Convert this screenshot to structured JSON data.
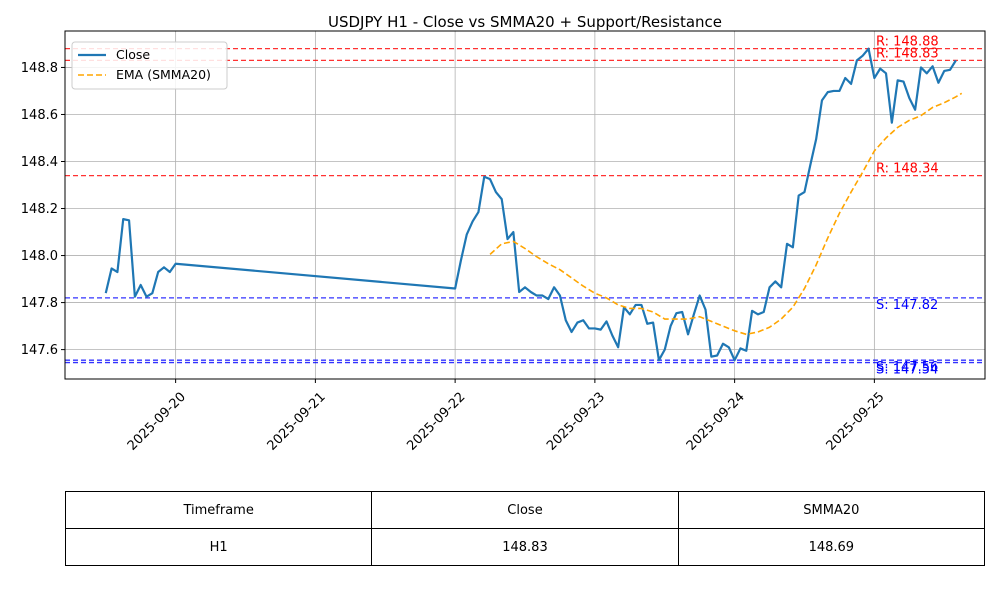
{
  "chart_data": {
    "type": "line",
    "title": "USDJPY H1 - Close vs SMMA20 + Support/Resistance",
    "xlabel": "",
    "ylabel": "",
    "x_ticks": [
      "2025-09-20",
      "2025-09-21",
      "2025-09-22",
      "2025-09-23",
      "2025-09-24",
      "2025-09-25"
    ],
    "y_ticks": [
      "147.6",
      "147.8",
      "148.0",
      "148.2",
      "148.4",
      "148.6",
      "148.8"
    ],
    "xlim": [
      "2025-09-19T05:00",
      "2025-09-25T19:00"
    ],
    "ylim": [
      147.475,
      148.955
    ],
    "grid": true,
    "legend_position": "upper-left",
    "legend": [
      "Close",
      "EMA (SMMA20)"
    ],
    "series": [
      {
        "name": "Close",
        "color": "#1f77b4",
        "points": [
          [
            "2025-09-19T12:00",
            147.84
          ],
          [
            "2025-09-19T13:00",
            147.945
          ],
          [
            "2025-09-19T14:00",
            147.93
          ],
          [
            "2025-09-19T15:00",
            148.155
          ],
          [
            "2025-09-19T16:00",
            148.15
          ],
          [
            "2025-09-19T17:00",
            147.825
          ],
          [
            "2025-09-19T18:00",
            147.875
          ],
          [
            "2025-09-19T19:00",
            147.825
          ],
          [
            "2025-09-19T20:00",
            147.84
          ],
          [
            "2025-09-19T21:00",
            147.93
          ],
          [
            "2025-09-19T22:00",
            147.95
          ],
          [
            "2025-09-19T23:00",
            147.93
          ],
          [
            "2025-09-20T00:00",
            147.965
          ],
          [
            "2025-09-22T00:00",
            147.86
          ],
          [
            "2025-09-22T01:00",
            147.98
          ],
          [
            "2025-09-22T02:00",
            148.09
          ],
          [
            "2025-09-22T03:00",
            148.145
          ],
          [
            "2025-09-22T04:00",
            148.185
          ],
          [
            "2025-09-22T05:00",
            148.335
          ],
          [
            "2025-09-22T06:00",
            148.325
          ],
          [
            "2025-09-22T07:00",
            148.27
          ],
          [
            "2025-09-22T08:00",
            148.24
          ],
          [
            "2025-09-22T09:00",
            148.07
          ],
          [
            "2025-09-22T10:00",
            148.1
          ],
          [
            "2025-09-22T11:00",
            147.845
          ],
          [
            "2025-09-22T12:00",
            147.865
          ],
          [
            "2025-09-22T13:00",
            147.845
          ],
          [
            "2025-09-22T14:00",
            147.83
          ],
          [
            "2025-09-22T15:00",
            147.83
          ],
          [
            "2025-09-22T16:00",
            147.815
          ],
          [
            "2025-09-22T17:00",
            147.865
          ],
          [
            "2025-09-22T18:00",
            147.83
          ],
          [
            "2025-09-22T19:00",
            147.725
          ],
          [
            "2025-09-22T20:00",
            147.675
          ],
          [
            "2025-09-22T21:00",
            147.715
          ],
          [
            "2025-09-22T22:00",
            147.725
          ],
          [
            "2025-09-22T23:00",
            147.69
          ],
          [
            "2025-09-23T00:00",
            147.69
          ],
          [
            "2025-09-23T01:00",
            147.685
          ],
          [
            "2025-09-23T02:00",
            147.72
          ],
          [
            "2025-09-23T03:00",
            147.66
          ],
          [
            "2025-09-23T04:00",
            147.61
          ],
          [
            "2025-09-23T05:00",
            147.78
          ],
          [
            "2025-09-23T06:00",
            147.75
          ],
          [
            "2025-09-23T07:00",
            147.79
          ],
          [
            "2025-09-23T08:00",
            147.79
          ],
          [
            "2025-09-23T09:00",
            147.71
          ],
          [
            "2025-09-23T10:00",
            147.715
          ],
          [
            "2025-09-23T11:00",
            147.555
          ],
          [
            "2025-09-23T12:00",
            147.6
          ],
          [
            "2025-09-23T13:00",
            147.7
          ],
          [
            "2025-09-23T14:00",
            147.755
          ],
          [
            "2025-09-23T15:00",
            147.76
          ],
          [
            "2025-09-23T16:00",
            147.665
          ],
          [
            "2025-09-23T17:00",
            147.75
          ],
          [
            "2025-09-23T18:00",
            147.83
          ],
          [
            "2025-09-23T19:00",
            147.77
          ],
          [
            "2025-09-23T20:00",
            147.57
          ],
          [
            "2025-09-23T21:00",
            147.575
          ],
          [
            "2025-09-23T22:00",
            147.625
          ],
          [
            "2025-09-23T23:00",
            147.61
          ],
          [
            "2025-09-24T00:00",
            147.555
          ],
          [
            "2025-09-24T01:00",
            147.605
          ],
          [
            "2025-09-24T02:00",
            147.595
          ],
          [
            "2025-09-24T03:00",
            147.765
          ],
          [
            "2025-09-24T04:00",
            147.75
          ],
          [
            "2025-09-24T05:00",
            147.76
          ],
          [
            "2025-09-24T06:00",
            147.865
          ],
          [
            "2025-09-24T07:00",
            147.89
          ],
          [
            "2025-09-24T08:00",
            147.865
          ],
          [
            "2025-09-24T09:00",
            148.05
          ],
          [
            "2025-09-24T10:00",
            148.035
          ],
          [
            "2025-09-24T11:00",
            148.255
          ],
          [
            "2025-09-24T12:00",
            148.27
          ],
          [
            "2025-09-24T13:00",
            148.385
          ],
          [
            "2025-09-24T14:00",
            148.495
          ],
          [
            "2025-09-24T15:00",
            148.66
          ],
          [
            "2025-09-24T16:00",
            148.695
          ],
          [
            "2025-09-24T17:00",
            148.7
          ],
          [
            "2025-09-24T18:00",
            148.7
          ],
          [
            "2025-09-24T19:00",
            148.755
          ],
          [
            "2025-09-24T20:00",
            148.73
          ],
          [
            "2025-09-24T21:00",
            148.83
          ],
          [
            "2025-09-24T22:00",
            148.85
          ],
          [
            "2025-09-24T23:00",
            148.88
          ],
          [
            "2025-09-25T00:00",
            148.755
          ],
          [
            "2025-09-25T01:00",
            148.795
          ],
          [
            "2025-09-25T02:00",
            148.775
          ],
          [
            "2025-09-25T03:00",
            148.565
          ],
          [
            "2025-09-25T04:00",
            148.745
          ],
          [
            "2025-09-25T05:00",
            148.74
          ],
          [
            "2025-09-25T06:00",
            148.67
          ],
          [
            "2025-09-25T07:00",
            148.62
          ],
          [
            "2025-09-25T08:00",
            148.8
          ],
          [
            "2025-09-25T09:00",
            148.775
          ],
          [
            "2025-09-25T10:00",
            148.805
          ],
          [
            "2025-09-25T11:00",
            148.735
          ],
          [
            "2025-09-25T12:00",
            148.785
          ],
          [
            "2025-09-25T13:00",
            148.79
          ],
          [
            "2025-09-25T14:00",
            148.83
          ]
        ]
      },
      {
        "name": "EMA (SMMA20)",
        "color": "#ffa500",
        "points": [
          [
            "2025-09-22T06:00",
            148.005
          ],
          [
            "2025-09-22T08:00",
            148.05
          ],
          [
            "2025-09-22T10:00",
            148.06
          ],
          [
            "2025-09-22T12:00",
            148.03
          ],
          [
            "2025-09-22T14:00",
            147.995
          ],
          [
            "2025-09-22T16:00",
            147.965
          ],
          [
            "2025-09-22T18:00",
            147.94
          ],
          [
            "2025-09-22T20:00",
            147.905
          ],
          [
            "2025-09-22T22:00",
            147.87
          ],
          [
            "2025-09-23T00:00",
            147.84
          ],
          [
            "2025-09-23T02:00",
            147.82
          ],
          [
            "2025-09-23T04:00",
            147.79
          ],
          [
            "2025-09-23T06:00",
            147.775
          ],
          [
            "2025-09-23T08:00",
            147.775
          ],
          [
            "2025-09-23T10:00",
            147.76
          ],
          [
            "2025-09-23T12:00",
            147.73
          ],
          [
            "2025-09-23T14:00",
            147.73
          ],
          [
            "2025-09-23T16:00",
            147.73
          ],
          [
            "2025-09-23T18:00",
            147.74
          ],
          [
            "2025-09-23T20:00",
            147.72
          ],
          [
            "2025-09-23T22:00",
            147.7
          ],
          [
            "2025-09-24T00:00",
            147.68
          ],
          [
            "2025-09-24T02:00",
            147.665
          ],
          [
            "2025-09-24T04:00",
            147.675
          ],
          [
            "2025-09-24T06:00",
            147.695
          ],
          [
            "2025-09-24T08:00",
            147.73
          ],
          [
            "2025-09-24T10:00",
            147.78
          ],
          [
            "2025-09-24T12:00",
            147.86
          ],
          [
            "2025-09-24T14:00",
            147.96
          ],
          [
            "2025-09-24T16:00",
            148.075
          ],
          [
            "2025-09-24T18:00",
            148.18
          ],
          [
            "2025-09-24T20:00",
            148.27
          ],
          [
            "2025-09-24T22:00",
            148.355
          ],
          [
            "2025-09-25T00:00",
            148.445
          ],
          [
            "2025-09-25T02:00",
            148.5
          ],
          [
            "2025-09-25T04:00",
            148.545
          ],
          [
            "2025-09-25T06:00",
            148.575
          ],
          [
            "2025-09-25T08:00",
            148.595
          ],
          [
            "2025-09-25T10:00",
            148.63
          ],
          [
            "2025-09-25T12:00",
            148.65
          ],
          [
            "2025-09-25T14:00",
            148.675
          ],
          [
            "2025-09-25T15:00",
            148.69
          ]
        ]
      }
    ],
    "resistance": [
      {
        "value": 148.88,
        "label": "R: 148.88",
        "color": "#ff0000"
      },
      {
        "value": 148.83,
        "label": "R: 148.83",
        "color": "#ff0000"
      },
      {
        "value": 148.34,
        "label": "R: 148.34",
        "color": "#ff0000"
      }
    ],
    "support": [
      {
        "value": 147.82,
        "label": "S: 147.82",
        "color": "#0000ff"
      },
      {
        "value": 147.555,
        "label": "S: 147.56",
        "color": "#0000ff"
      },
      {
        "value": 147.545,
        "label": "S: 147.54",
        "color": "#0000ff"
      }
    ]
  },
  "table": {
    "headers": [
      "Timeframe",
      "Close",
      "SMMA20"
    ],
    "row": [
      "H1",
      "148.83",
      "148.69"
    ]
  }
}
